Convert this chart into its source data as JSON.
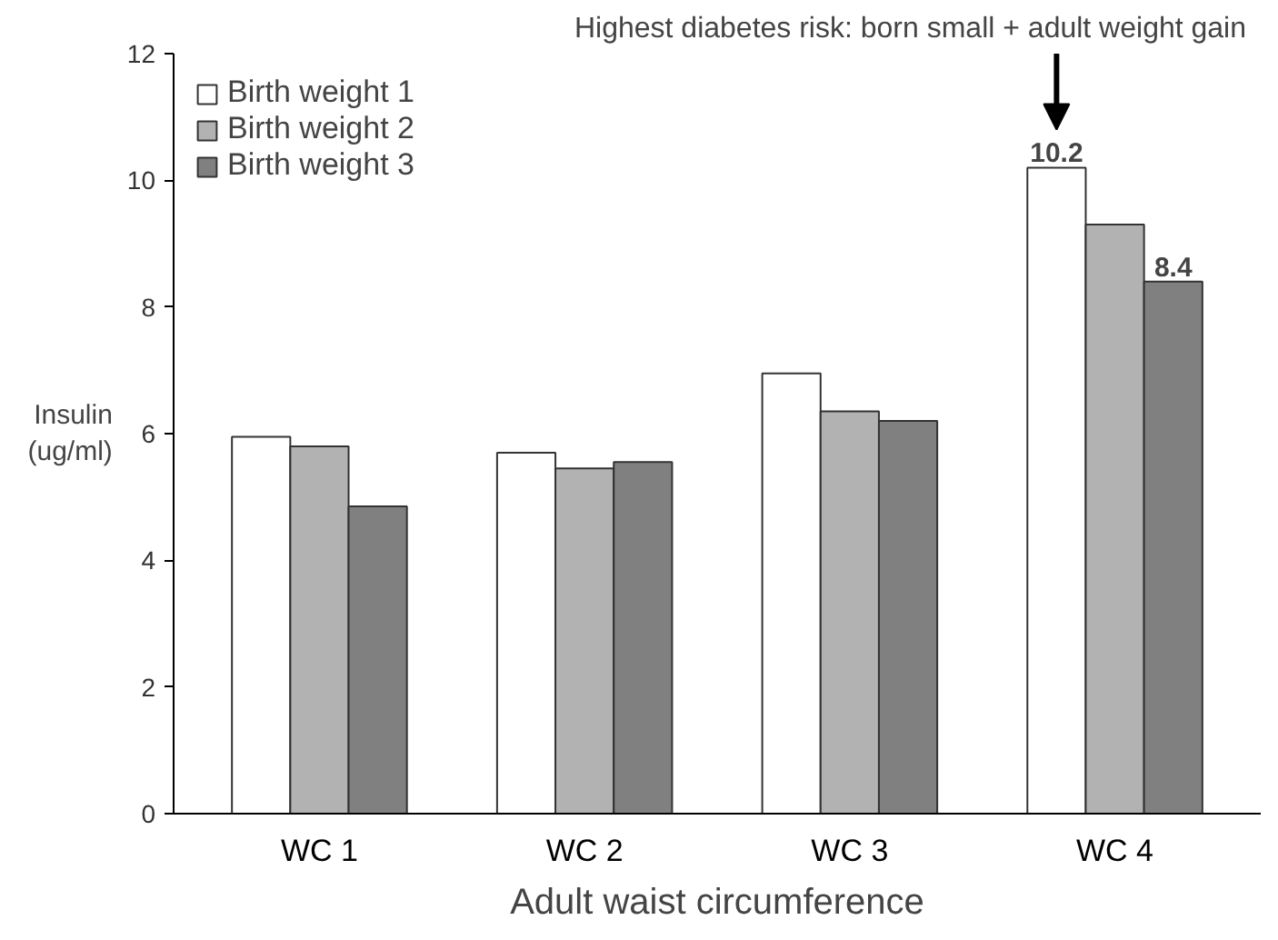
{
  "chart_data": {
    "type": "bar",
    "xlabel": "Adult waist circumference",
    "ylabel": "Insulin\n(ug/ml)",
    "categories": [
      "WC 1",
      "WC 2",
      "WC 3",
      "WC 4"
    ],
    "series": [
      {
        "name": "Birth weight 1",
        "color": "#ffffff",
        "values": [
          5.95,
          5.7,
          6.95,
          10.2
        ],
        "value_labels": [
          null,
          null,
          null,
          "10.2"
        ]
      },
      {
        "name": "Birth weight 2",
        "color": "#b2b2b2",
        "values": [
          5.8,
          5.45,
          6.35,
          9.3
        ]
      },
      {
        "name": "Birth weight 3",
        "color": "#808080",
        "values": [
          4.85,
          5.55,
          6.2,
          8.4
        ],
        "value_labels": [
          null,
          null,
          null,
          "8.4"
        ]
      }
    ],
    "annotations": [
      "Highest diabetes risk: born small + adult weight gain"
    ],
    "ylim": [
      0,
      12
    ],
    "yticks": [
      0,
      2,
      4,
      6,
      8,
      10,
      12
    ],
    "grid": false,
    "legend": "top left"
  }
}
